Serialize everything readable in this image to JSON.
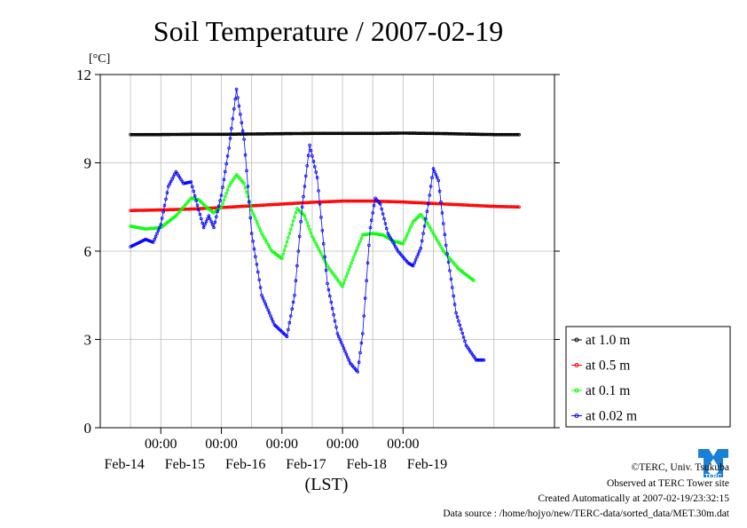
{
  "chart_data": {
    "type": "line",
    "title": "Soil Temperature / 2007-02-19",
    "ylabel": "[°C]",
    "xlabel": "(LST)",
    "ylim": [
      0,
      12
    ],
    "yticks": [
      "0",
      "3",
      "6",
      "9",
      "12"
    ],
    "x_range_hours_note": "",
    "xticks_time": [
      "00:00",
      "00:00",
      "00:00",
      "00:00",
      "00:00"
    ],
    "xticks_date": [
      "Feb-14",
      "Feb-15",
      "Feb-16",
      "Feb-17",
      "Feb-18",
      "Feb-19"
    ],
    "grid": true,
    "legend_position": "right",
    "series": [
      {
        "name": "at 1.0 m",
        "color": "#000000",
        "points": [
          [
            -12,
            9.96
          ],
          [
            0,
            9.96
          ],
          [
            12,
            9.97
          ],
          [
            24,
            9.97
          ],
          [
            36,
            9.98
          ],
          [
            48,
            9.99
          ],
          [
            60,
            10.0
          ],
          [
            72,
            10.0
          ],
          [
            84,
            10.0
          ],
          [
            96,
            10.01
          ],
          [
            108,
            10.0
          ],
          [
            120,
            9.98
          ],
          [
            132,
            9.96
          ],
          [
            142,
            9.96
          ]
        ]
      },
      {
        "name": "at 0.5 m",
        "color": "#ff0000",
        "points": [
          [
            -12,
            7.38
          ],
          [
            0,
            7.4
          ],
          [
            12,
            7.43
          ],
          [
            24,
            7.48
          ],
          [
            36,
            7.54
          ],
          [
            48,
            7.6
          ],
          [
            60,
            7.66
          ],
          [
            72,
            7.7
          ],
          [
            84,
            7.7
          ],
          [
            96,
            7.67
          ],
          [
            108,
            7.62
          ],
          [
            120,
            7.57
          ],
          [
            132,
            7.52
          ],
          [
            142,
            7.5
          ]
        ]
      },
      {
        "name": "at 0.1 m",
        "color": "#00ff00",
        "points": [
          [
            -12,
            6.85
          ],
          [
            -6,
            6.75
          ],
          [
            0,
            6.8
          ],
          [
            6,
            7.2
          ],
          [
            12,
            7.8
          ],
          [
            15,
            7.75
          ],
          [
            18,
            7.5
          ],
          [
            21,
            7.3
          ],
          [
            24,
            7.5
          ],
          [
            27,
            8.2
          ],
          [
            30,
            8.6
          ],
          [
            33,
            8.3
          ],
          [
            36,
            7.4
          ],
          [
            40,
            6.6
          ],
          [
            44,
            6.0
          ],
          [
            48,
            5.75
          ],
          [
            51,
            6.6
          ],
          [
            54,
            7.45
          ],
          [
            57,
            7.2
          ],
          [
            60,
            6.5
          ],
          [
            66,
            5.5
          ],
          [
            72,
            4.8
          ],
          [
            76,
            5.7
          ],
          [
            80,
            6.55
          ],
          [
            84,
            6.6
          ],
          [
            88,
            6.55
          ],
          [
            92,
            6.35
          ],
          [
            96,
            6.25
          ],
          [
            100,
            7.0
          ],
          [
            103,
            7.25
          ],
          [
            106,
            6.9
          ],
          [
            112,
            6.0
          ],
          [
            118,
            5.4
          ],
          [
            124,
            5.0
          ]
        ]
      },
      {
        "name": "at 0.02 m",
        "color": "#0000ff",
        "points": [
          [
            -12,
            6.15
          ],
          [
            -6,
            6.4
          ],
          [
            -3,
            6.3
          ],
          [
            0,
            6.9
          ],
          [
            3,
            8.2
          ],
          [
            6,
            8.7
          ],
          [
            9,
            8.3
          ],
          [
            12,
            8.35
          ],
          [
            15,
            7.4
          ],
          [
            17,
            6.8
          ],
          [
            19,
            7.2
          ],
          [
            21,
            6.8
          ],
          [
            24,
            7.9
          ],
          [
            27,
            9.5
          ],
          [
            30,
            11.5
          ],
          [
            33,
            9.8
          ],
          [
            36,
            6.6
          ],
          [
            40,
            4.5
          ],
          [
            45,
            3.5
          ],
          [
            50,
            3.1
          ],
          [
            53,
            4.5
          ],
          [
            56,
            7.5
          ],
          [
            59,
            9.6
          ],
          [
            62,
            8.5
          ],
          [
            66,
            4.9
          ],
          [
            70,
            3.2
          ],
          [
            75,
            2.2
          ],
          [
            78,
            1.9
          ],
          [
            80,
            3.2
          ],
          [
            83,
            6.8
          ],
          [
            85,
            7.8
          ],
          [
            87,
            7.6
          ],
          [
            90,
            6.6
          ],
          [
            94,
            6.0
          ],
          [
            98,
            5.6
          ],
          [
            100,
            5.5
          ],
          [
            103,
            6.1
          ],
          [
            106,
            7.6
          ],
          [
            108,
            8.8
          ],
          [
            110,
            8.4
          ],
          [
            113,
            6.2
          ],
          [
            117,
            3.9
          ],
          [
            121,
            2.8
          ],
          [
            125,
            2.3
          ],
          [
            128,
            2.3
          ]
        ]
      }
    ]
  },
  "credits": {
    "copyright": "©TERC, Univ. Tsukuba",
    "observed": "Observed at TERC Tower site",
    "created": "Created Automatically at 2007-02-19/23:32:15",
    "source": "Data source : /home/hojyo/new/TERC-data/sorted_data/MET.30m.dat"
  },
  "logo": {
    "text": "TERC",
    "color": "#1a7fd6",
    "icon": "terc-logo-icon"
  }
}
